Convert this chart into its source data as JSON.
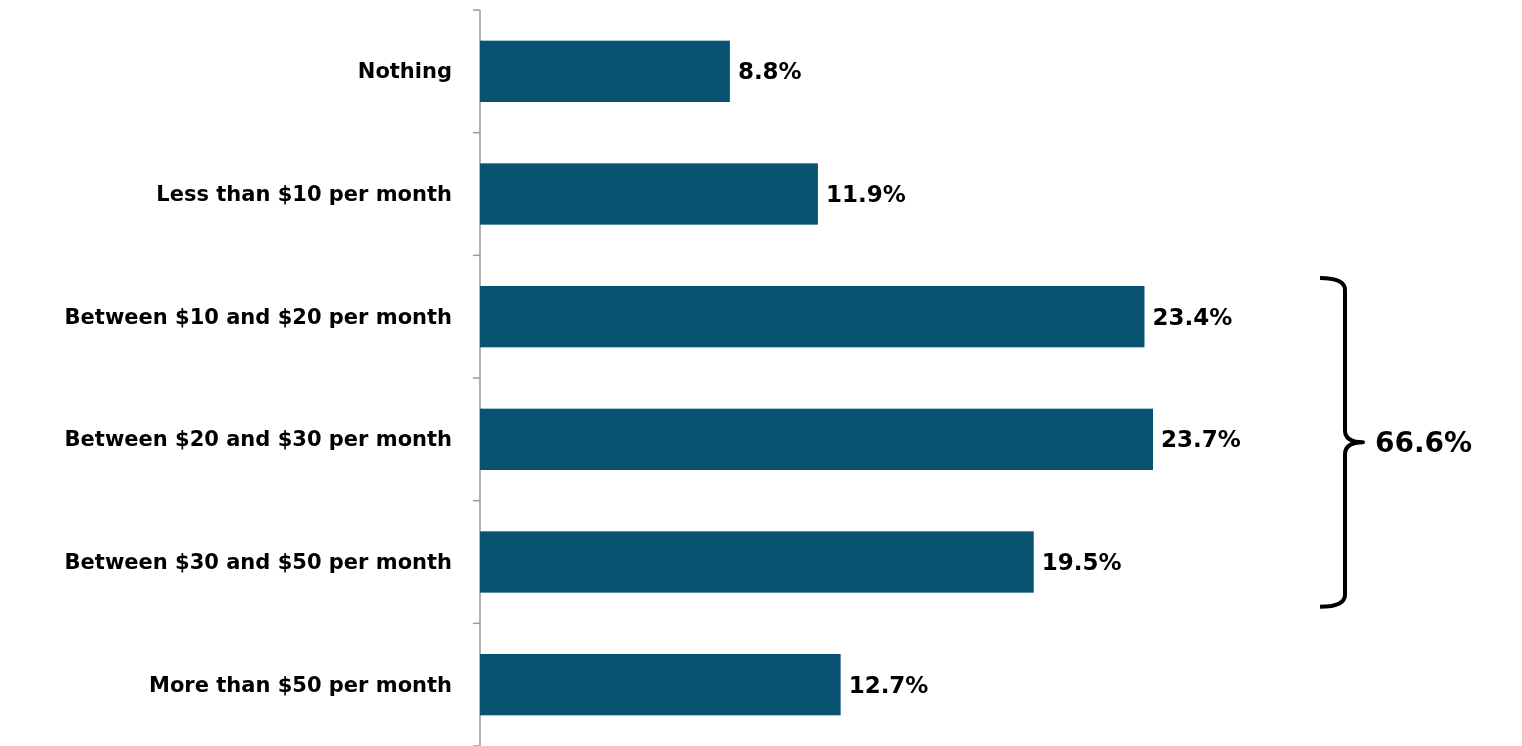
{
  "chart_data": {
    "type": "bar",
    "orientation": "horizontal",
    "categories": [
      "Nothing",
      "Less than $10 per month",
      "Between $10 and $20 per month",
      "Between $20 and $30 per month",
      "Between $30 and $50 per month",
      "More than $50 per month"
    ],
    "values": [
      8.8,
      11.9,
      23.4,
      23.7,
      19.5,
      12.7
    ],
    "value_labels": [
      "8.8%",
      "11.9%",
      "23.4%",
      "23.7%",
      "19.5%",
      "12.7%"
    ],
    "color": "#0a5272",
    "annotations": [
      "66.6%"
    ]
  }
}
